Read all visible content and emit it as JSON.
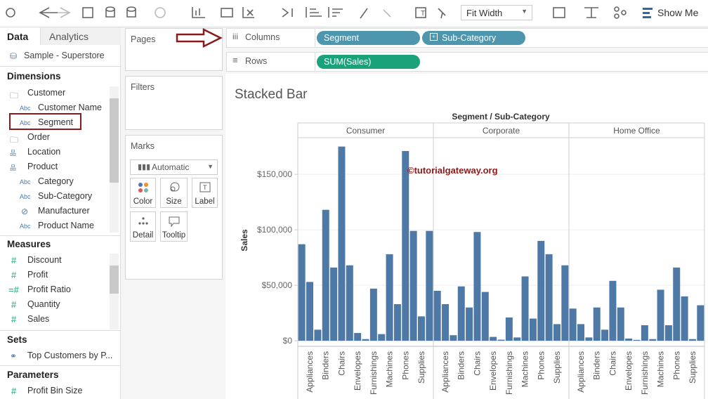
{
  "toolbar": {
    "fit": "Fit Width",
    "show_me": "Show Me"
  },
  "data_pane": {
    "tabs": [
      "Data",
      "Analytics"
    ],
    "source": "Sample - Superstore",
    "dimensions": {
      "title": "Dimensions",
      "items": [
        "Customer",
        "Customer Name",
        "Segment",
        "Order",
        "Location",
        "Product",
        "Category",
        "Sub-Category",
        "Manufacturer",
        "Product Name"
      ]
    },
    "measures": {
      "title": "Measures",
      "items": [
        "Discount",
        "Profit",
        "Profit Ratio",
        "Quantity",
        "Sales"
      ]
    },
    "sets": {
      "title": "Sets",
      "items": [
        "Top Customers by P..."
      ]
    },
    "parameters": {
      "title": "Parameters",
      "items": [
        "Profit Bin Size"
      ]
    }
  },
  "cards": {
    "pages": "Pages",
    "filters": "Filters",
    "marks": {
      "title": "Marks",
      "type": "Automatic",
      "buttons": [
        "Color",
        "Size",
        "Label",
        "Detail",
        "Tooltip"
      ]
    }
  },
  "shelves": {
    "columns": {
      "label": "Columns",
      "pills": [
        "Segment",
        "Sub-Category"
      ]
    },
    "rows": {
      "label": "Rows",
      "pills": [
        "SUM(Sales)"
      ]
    }
  },
  "sheet_title": "Stacked Bar",
  "watermark": "©tutorialgateway.org",
  "chart_data": {
    "type": "bar",
    "x_title": "Segment / Sub-Category",
    "y_title": "Sales",
    "color": "#4e79a7",
    "ylim": [
      -5000,
      183000
    ],
    "yticks": [
      {
        "value": 0,
        "label": "$0"
      },
      {
        "value": 50000,
        "label": "$50,000"
      },
      {
        "value": 100000,
        "label": "$100,000"
      },
      {
        "value": 150000,
        "label": "$150,000"
      }
    ],
    "grid": true,
    "panels": [
      {
        "name": "Consumer",
        "categories": [
          null,
          "Appliances",
          null,
          "Binders",
          null,
          "Chairs",
          null,
          "Envelopes",
          null,
          "Furnishings",
          null,
          "Machines",
          null,
          "Phones",
          null,
          "Supplies",
          null
        ],
        "values": [
          87000,
          53000,
          10000,
          118000,
          66000,
          175000,
          68000,
          7000,
          1500,
          47000,
          6000,
          78000,
          33000,
          171000,
          99000,
          22000,
          99000
        ]
      },
      {
        "name": "Corporate",
        "categories": [
          null,
          "Appliances",
          null,
          "Binders",
          null,
          "Chairs",
          null,
          "Envelopes",
          null,
          "Furnishings",
          null,
          "Machines",
          null,
          "Phones",
          null,
          "Supplies",
          null
        ],
        "values": [
          45000,
          33000,
          5000,
          49000,
          30000,
          98000,
          44000,
          3500,
          1000,
          21000,
          3000,
          58000,
          20000,
          90000,
          78000,
          15000,
          68000
        ]
      },
      {
        "name": "Home Office",
        "categories": [
          null,
          "Appliances",
          null,
          "Binders",
          null,
          "Chairs",
          null,
          "Envelopes",
          null,
          "Furnishings",
          null,
          "Machines",
          null,
          "Phones",
          null,
          "Supplies",
          null
        ],
        "values": [
          29000,
          15000,
          3000,
          30000,
          10000,
          54000,
          30000,
          2000,
          800,
          14000,
          1500,
          46000,
          14000,
          66000,
          40000,
          1500,
          32000
        ]
      }
    ]
  }
}
